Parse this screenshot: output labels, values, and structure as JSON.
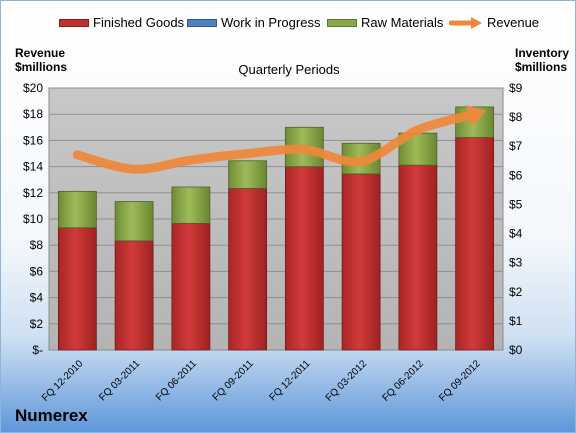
{
  "chart_data": {
    "type": "bar",
    "subtitle": "Quarterly Periods",
    "company": "Numerex",
    "categories": [
      "FQ 12-2010",
      "FQ 03-2011",
      "FQ 06-2011",
      "FQ 09-2011",
      "FQ 12-2011",
      "FQ 03-2012",
      "FQ 06-2012",
      "FQ 09-2012"
    ],
    "left_axis": {
      "label_line1": "Revenue",
      "label_line2": "$millions",
      "ylim": [
        0,
        20
      ],
      "ticks": [
        "$-",
        "$2",
        "$4",
        "$6",
        "$8",
        "$10",
        "$12",
        "$14",
        "$16",
        "$18",
        "$20"
      ]
    },
    "right_axis": {
      "label_line1": "Inventory",
      "label_line2": "$millions",
      "ylim": [
        0,
        9
      ],
      "ticks": [
        "$0",
        "$1",
        "$2",
        "$3",
        "$4",
        "$5",
        "$6",
        "$7",
        "$8",
        "$9"
      ]
    },
    "stacked_series": [
      {
        "name": "Finished Goods",
        "color": "#c0302f",
        "values": [
          4.2,
          3.75,
          4.35,
          5.55,
          6.3,
          6.05,
          6.35,
          7.3
        ]
      },
      {
        "name": "Work in Progress",
        "color": "#4f81bd",
        "values": [
          0.0,
          0.0,
          0.0,
          0.0,
          0.0,
          0.0,
          0.0,
          0.0
        ]
      },
      {
        "name": "Raw Materials",
        "color": "#8aa84a",
        "values": [
          1.25,
          1.35,
          1.25,
          0.95,
          1.35,
          1.05,
          1.1,
          1.05
        ]
      }
    ],
    "line_series": {
      "name": "Revenue",
      "color": "#f0883a",
      "values": [
        14.9,
        13.8,
        14.5,
        15.0,
        15.3,
        14.4,
        16.8,
        18.0
      ]
    },
    "grid": true,
    "legend_position": "top"
  }
}
